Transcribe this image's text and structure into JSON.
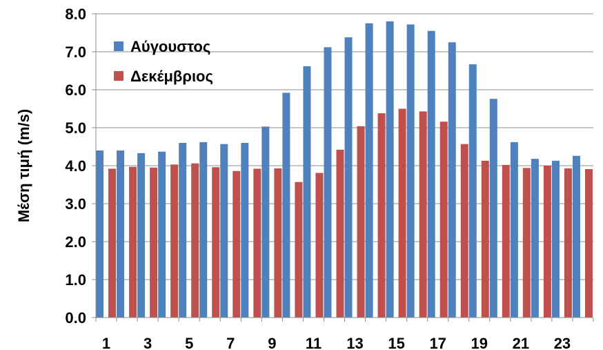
{
  "chart_data": {
    "type": "bar",
    "title": "",
    "xlabel": "",
    "ylabel": "Μέση τιμή (m/s)",
    "ylim": [
      0,
      8
    ],
    "ytick_step": 1,
    "ytick_labels": [
      "0.0",
      "1.0",
      "2.0",
      "3.0",
      "4.0",
      "5.0",
      "6.0",
      "7.0",
      "8.0"
    ],
    "categories": [
      "1",
      "2",
      "3",
      "4",
      "5",
      "6",
      "7",
      "8",
      "9",
      "10",
      "11",
      "12",
      "13",
      "14",
      "15",
      "16",
      "17",
      "18",
      "19",
      "20",
      "21",
      "22",
      "23",
      "24"
    ],
    "x_tick_labels": [
      "1",
      "3",
      "5",
      "7",
      "9",
      "11",
      "13",
      "15",
      "17",
      "19",
      "21",
      "23"
    ],
    "grid": true,
    "legend_position": "top-left",
    "series": [
      {
        "name": "Αύγουστος",
        "color": "#4f81bd",
        "values": [
          4.4,
          4.4,
          4.33,
          4.37,
          4.6,
          4.62,
          4.57,
          4.6,
          5.03,
          5.92,
          6.62,
          7.12,
          7.38,
          7.75,
          7.8,
          7.72,
          7.55,
          7.25,
          6.67,
          5.76,
          4.62,
          4.18,
          4.13,
          4.26
        ]
      },
      {
        "name": "Δεκέμβριος",
        "color": "#c0504d",
        "values": [
          3.92,
          3.97,
          3.95,
          4.03,
          4.06,
          3.96,
          3.86,
          3.92,
          3.93,
          3.57,
          3.81,
          4.42,
          5.04,
          5.38,
          5.5,
          5.43,
          5.16,
          4.57,
          4.13,
          4.02,
          3.94,
          4.0,
          3.93,
          3.91
        ]
      }
    ]
  }
}
